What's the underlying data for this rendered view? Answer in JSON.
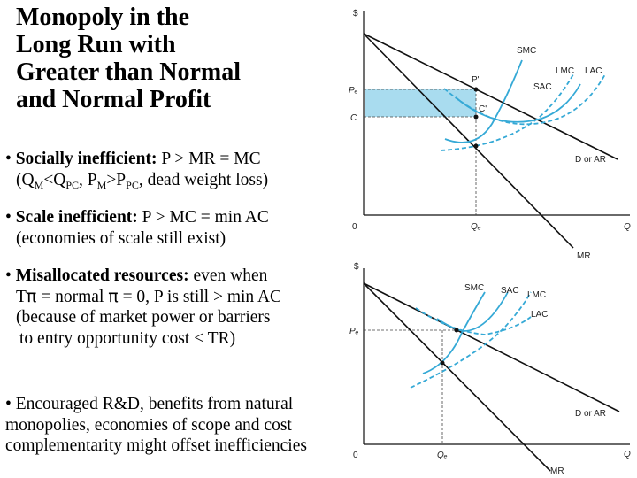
{
  "title": {
    "lines": [
      "Monopoly in the",
      "Long Run with",
      "Greater than Normal",
      "and Normal Profit"
    ]
  },
  "bullets": {
    "b1": {
      "dot": "•",
      "head": "Socially inefficient:",
      "rest": " P > MR = MC",
      "open": "(Q",
      "M1": "M",
      "lt": "<Q",
      "PC1": "PC",
      "comma": ", P",
      "M2": "M",
      "gt": ">P",
      "PC2": "PC",
      "tail": ", dead weight loss)"
    },
    "b2": {
      "dot": "•",
      "head": "Scale inefficient:",
      "rest": " P > MC = min AC",
      "line2": "(economies of scale still exist)"
    },
    "b3": {
      "dot": "•",
      "head": "Misallocated resources:",
      "rest": " even when",
      "l2a": "T",
      "pi1": "π",
      "l2b": " = normal ",
      "pi2": "π",
      "l2c": " = 0, P is still > min AC",
      "line3": "(because of market power or barriers",
      "line4": "to entry opportunity cost < TR)"
    },
    "b4": {
      "line1": "• Encouraged R&D, benefits from natural",
      "line2": "monopolies, economies of scope and cost",
      "line3": "complementarity might offset inefficiencies"
    }
  },
  "graph_top": {
    "y_axis": "$",
    "origin": "0",
    "x_axis": "Q",
    "price_label": "Pₑ",
    "cost_label": "C",
    "quantity_label": "Qₑ",
    "point_p": "P'",
    "point_c": "C'",
    "curves": {
      "smc": "SMC",
      "lmc": "LMC",
      "lac": "LAC",
      "sac": "SAC",
      "demand": "D or AR",
      "mr": "MR"
    }
  },
  "graph_bottom": {
    "y_axis": "$",
    "origin": "0",
    "x_axis": "Q",
    "price_label": "Pₑ",
    "quantity_label": "Qₑ",
    "curves": {
      "smc": "SMC",
      "sac": "SAC",
      "lmc": "LMC",
      "lac": "LAC",
      "demand": "D or AR",
      "mr": "MR"
    }
  },
  "colors": {
    "curve": "#35a9d6",
    "profit_fill": "#a9dcef",
    "line": "#111111"
  }
}
